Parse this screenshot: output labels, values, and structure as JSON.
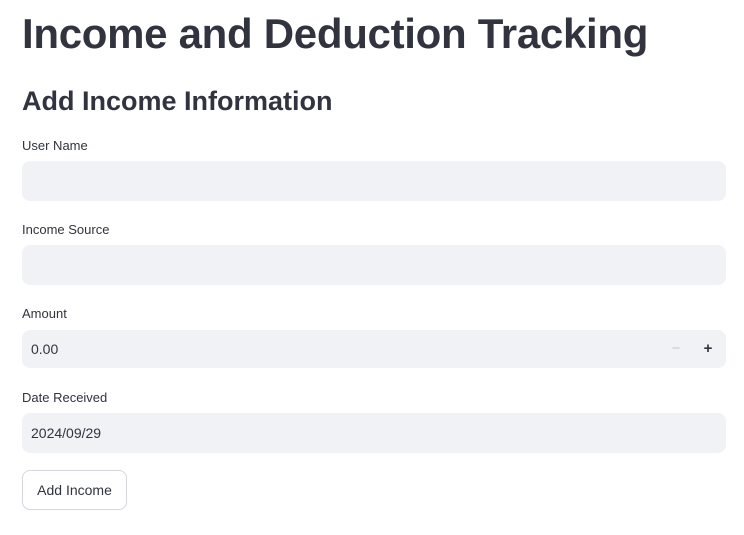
{
  "page": {
    "title": "Income and Deduction Tracking",
    "section_title": "Add Income Information"
  },
  "form": {
    "user_name": {
      "label": "User Name",
      "value": ""
    },
    "income_source": {
      "label": "Income Source",
      "value": ""
    },
    "amount": {
      "label": "Amount",
      "value": "0.00",
      "decrement": "−",
      "increment": "+"
    },
    "date_received": {
      "label": "Date Received",
      "value": "2024/09/29"
    },
    "submit_label": "Add Income"
  }
}
